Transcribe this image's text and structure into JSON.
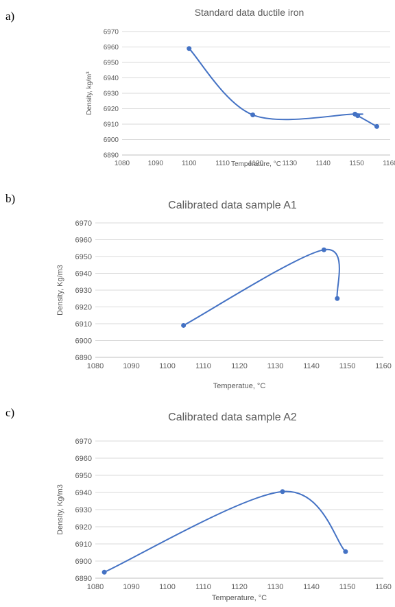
{
  "panels": [
    {
      "label": "a)",
      "chart_data": {
        "type": "line",
        "title": "Standard data ductile iron",
        "xlabel": "Temperature, °C",
        "ylabel": "Density, kg/m³",
        "xlim": [
          1080,
          1160
        ],
        "ylim": [
          6890,
          6970
        ],
        "xticks": [
          1080,
          1090,
          1100,
          1110,
          1120,
          1130,
          1140,
          1150,
          1160
        ],
        "yticks": [
          6890,
          6900,
          6910,
          6920,
          6930,
          6940,
          6950,
          6960,
          6970
        ],
        "smooth": true,
        "grid": true,
        "series": [
          {
            "x": [
              1100,
              1119,
              1149.5,
              1150.3,
              1156
            ],
            "y": [
              6959,
              6916,
              6916.5,
              6915.5,
              6908.5
            ],
            "color": "#4472c4"
          }
        ]
      }
    },
    {
      "label": "b)",
      "chart_data": {
        "type": "line",
        "title": "Calibrated data sample A1",
        "xlabel": "Temperatue,  °C",
        "ylabel": "Density, Kg/m3",
        "xlim": [
          1080,
          1160
        ],
        "ylim": [
          6890,
          6970
        ],
        "xticks": [
          1080,
          1090,
          1100,
          1110,
          1120,
          1130,
          1140,
          1150,
          1160
        ],
        "yticks": [
          6890,
          6900,
          6910,
          6920,
          6930,
          6940,
          6950,
          6960,
          6970
        ],
        "smooth": true,
        "grid": true,
        "series": [
          {
            "x": [
              1104.5,
              1143.5,
              1147.2
            ],
            "y": [
              6909,
              6954,
              6925
            ],
            "color": "#4472c4"
          }
        ]
      }
    },
    {
      "label": "c)",
      "chart_data": {
        "type": "line",
        "title": "Calibrated data sample A2",
        "xlabel": "Temperature,  °C",
        "ylabel": "Density, Kg/m3",
        "xlim": [
          1080,
          1160
        ],
        "ylim": [
          6890,
          6970
        ],
        "xticks": [
          1080,
          1090,
          1100,
          1110,
          1120,
          1130,
          1140,
          1150,
          1160
        ],
        "yticks": [
          6890,
          6900,
          6910,
          6920,
          6930,
          6940,
          6950,
          6960,
          6970
        ],
        "smooth": true,
        "grid": true,
        "series": [
          {
            "x": [
              1082.5,
              1132,
              1149.5
            ],
            "y": [
              6893.5,
              6940.5,
              6905.5
            ],
            "color": "#4472c4"
          }
        ]
      }
    }
  ]
}
